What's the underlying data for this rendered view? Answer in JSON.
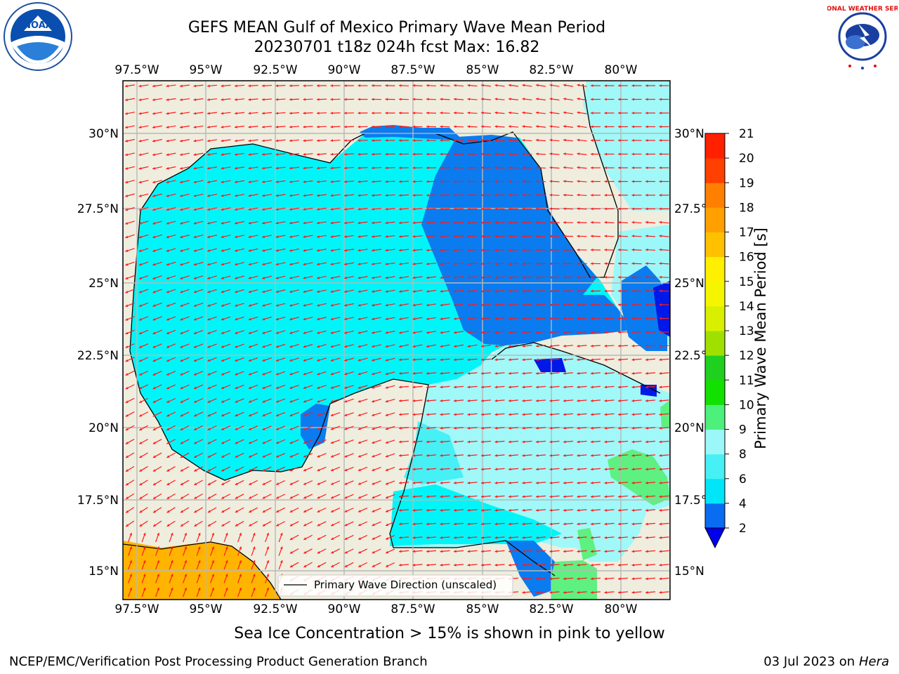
{
  "title_line1": "GEFS MEAN Gulf of Mexico Primary Wave Mean Period",
  "title_line2": "20230701 t18z 024h fcst   Max: 16.82",
  "lon_labels": [
    "97.5°W",
    "95°W",
    "92.5°W",
    "90°W",
    "87.5°W",
    "85°W",
    "82.5°W",
    "80°W"
  ],
  "lat_labels": [
    "30°N",
    "27.5°N",
    "25°N",
    "22.5°N",
    "20°N",
    "17.5°N",
    "15°N"
  ],
  "colorbar": {
    "label": "Primary Wave Mean Period [s]",
    "levels": [
      2,
      4,
      6,
      8,
      9,
      10,
      11,
      12,
      13,
      14,
      15,
      16,
      17,
      18,
      19,
      20,
      21
    ],
    "colors": [
      "#0a6cf0",
      "#00e5f8",
      "#47f0f5",
      "#9cf8f8",
      "#4df07a",
      "#12e000",
      "#1fd01f",
      "#a0e000",
      "#d8f000",
      "#f5f500",
      "#ffef00",
      "#ffc000",
      "#ffa000",
      "#ff8000",
      "#ff4000",
      "#ff2000"
    ],
    "under_color": "#0000ee"
  },
  "legend_label": "Primary Wave Direction (unscaled)",
  "caption": "Sea Ice Concentration > 15% is shown in pink to yellow",
  "footer_left": "NCEP/EMC/Verification Post Processing Product Generation Branch",
  "footer_date": "03 Jul 2023 on ",
  "footer_host": "Hera",
  "logos": {
    "left": "noaa-logo",
    "right": "nws-logo"
  },
  "logo_text": {
    "noaa": "NOAA",
    "nws": "NATIONAL WEATHER SERVICE"
  },
  "colors": {
    "land": "#efedde",
    "sea_cyan": "#00f5f8",
    "sea_blue": "#0a7cf0",
    "sea_light": "#a0f8f8",
    "sea_green": "#5ef080",
    "sea_orange": "#ffb400",
    "deep_blue": "#0018e8",
    "arrow": "#ff1a1a",
    "grid": "#b8b8b8"
  }
}
